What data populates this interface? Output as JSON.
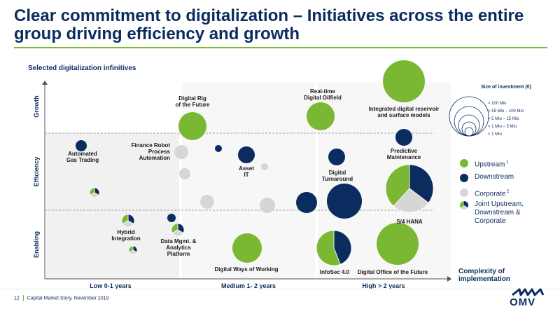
{
  "title": "Clear commitment to digitalization – Initiatives across the entire group driving efficiency and growth",
  "subtitle": "Selected digitalization infinitives",
  "colors": {
    "upstream": "#7ab834",
    "downstream": "#0b2c5e",
    "corporate": "#d6d6d6",
    "background_panel": "#f1f1f1",
    "title": "#0b2c5e"
  },
  "chart_data": {
    "type": "bubble",
    "y_axis": [
      "Enabling",
      "Efficiency",
      "Growth"
    ],
    "x_axis": [
      "Low 0-1 years",
      "Medium 1- 2 years",
      "High > 2 years"
    ],
    "x_axis_title": "Complexity of implementation",
    "size_legend": {
      "title": "Size of investment (€)",
      "classes": [
        "> 100 Mio",
        ">  15 Mio – 100 Mio",
        ">    5 Mio   – 15 Mio",
        ">    1 Mio –    5 Mio",
        "<    1 Mio"
      ]
    },
    "segments": [
      {
        "key": "upstream",
        "label": "Upstream",
        "sup": "1"
      },
      {
        "key": "downstream",
        "label": "Downstream",
        "sup": ""
      },
      {
        "key": "corporate",
        "label": "Corporate",
        "sup": "2"
      },
      {
        "key": "joint",
        "label": "Joint Upstream, Downstream & Corporate",
        "sup": ""
      }
    ],
    "initiatives": [
      {
        "name": "Automated Gas Trading",
        "complexity": "Low 0-1 years",
        "area": "Efficiency",
        "segment": "downstream",
        "size": "1-5 Mio"
      },
      {
        "name": "Hybrid Integration",
        "complexity": "Low 0-1 years",
        "area": "Enabling",
        "segment": "joint",
        "size": "1-5 Mio"
      },
      {
        "name": "Data Mgmt. & Analytics Platform",
        "complexity": "Medium 1- 2 years",
        "area": "Enabling",
        "segment": "joint",
        "size": "1-5 Mio"
      },
      {
        "name": "Digital Rig of the Future",
        "complexity": "Medium 1- 2 years",
        "area": "Growth",
        "segment": "upstream",
        "size": "15-100 Mio"
      },
      {
        "name": "Finance Robot Process Automation",
        "complexity": "Medium 1- 2 years",
        "area": "Efficiency",
        "segment": "corporate",
        "size": "1-5 Mio"
      },
      {
        "name": "Asset IT",
        "complexity": "Medium 1- 2 years",
        "area": "Efficiency",
        "segment": "downstream",
        "size": "5-15 Mio"
      },
      {
        "name": "Digital Ways of Working",
        "complexity": "Medium 1- 2 years",
        "area": "Enabling",
        "segment": "upstream",
        "size": "15-100 Mio"
      },
      {
        "name": "Real-time Digital Oilfield",
        "complexity": "High > 2 years",
        "area": "Growth",
        "segment": "upstream",
        "size": "15-100 Mio"
      },
      {
        "name": "Integrated digital reservoir and surface models",
        "complexity": "High > 2 years",
        "area": "Growth",
        "segment": "upstream",
        "size": "> 100 Mio"
      },
      {
        "name": "Predictive Maintenance",
        "complexity": "High > 2 years",
        "area": "Efficiency",
        "segment": "downstream",
        "size": "5-15 Mio"
      },
      {
        "name": "Digital Turnaround",
        "complexity": "High > 2 years",
        "area": "Efficiency",
        "segment": "downstream",
        "size": "5-15 Mio"
      },
      {
        "name": "S/4 HANA",
        "complexity": "High > 2 years",
        "area": "Efficiency",
        "segment": "joint",
        "size": "> 100 Mio"
      },
      {
        "name": "InfoSec 4.0",
        "complexity": "High > 2 years",
        "area": "Enabling",
        "segment": "joint",
        "size": "15-100 Mio"
      },
      {
        "name": "Digital Office of the Future",
        "complexity": "High > 2 years",
        "area": "Enabling",
        "segment": "upstream",
        "size": "> 100 Mio"
      }
    ]
  },
  "footer": {
    "page": "12",
    "text": "Capital Market Story, November 2019"
  },
  "logo": {
    "text": "OMV"
  }
}
